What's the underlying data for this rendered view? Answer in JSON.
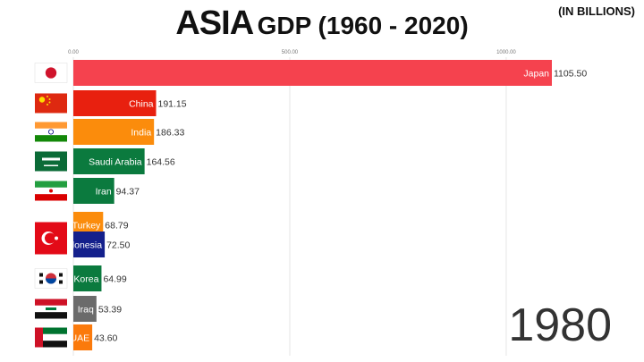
{
  "header": {
    "title_main": "ASIA",
    "title_rest": "GDP (1960 - 2020)",
    "unit": "(IN BILLIONS)"
  },
  "year": "1980",
  "chart_data": {
    "type": "bar",
    "orientation": "horizontal",
    "title": "ASIA GDP (1960 - 2020)",
    "unit": "(IN BILLIONS)",
    "xlim": [
      0,
      1105.5
    ],
    "ticks": [
      0,
      500,
      1000
    ],
    "tick_labels": [
      "0.00",
      "500.00",
      "1000.00"
    ],
    "grid": true,
    "categories": [
      "Japan",
      "China",
      "India",
      "Saudi Arabia",
      "Iran",
      "Turkey",
      "Indonesia",
      "Korea",
      "Iraq",
      "UAE"
    ],
    "values": [
      1105.5,
      191.15,
      186.33,
      164.56,
      94.37,
      68.79,
      72.5,
      64.99,
      53.39,
      43.6
    ],
    "value_labels": [
      "1105.50",
      "191.15",
      "186.33",
      "164.56",
      "94.37",
      "68.79",
      "72.50",
      "64.99",
      "53.39",
      "43.60"
    ],
    "colors": [
      "#f5424e",
      "#e8200f",
      "#fb8c0c",
      "#0b7a3e",
      "#0b7a3e",
      "#fb8c0c",
      "#14208c",
      "#0b7a3e",
      "#6b6b6b",
      "#fb7a0c"
    ],
    "flags": [
      "japan-flag",
      "china-flag",
      "india-flag",
      "saudi-arabia-flag",
      "iran-flag",
      "turkey-flag",
      "indonesia-flag",
      "south-korea-flag",
      "iraq-flag",
      "uae-flag"
    ]
  }
}
